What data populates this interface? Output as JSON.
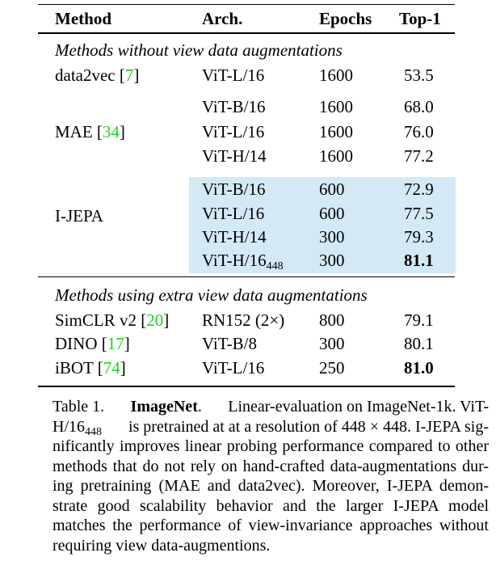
{
  "table": {
    "headers": {
      "method": "Method",
      "arch": "Arch.",
      "epochs": "Epochs",
      "top1": "Top-1"
    },
    "section_without": "Methods without view data augmentations",
    "section_with": "Methods using extra view data augmentations",
    "data2vec": {
      "method": "data2vec",
      "ref": "7",
      "arch": "ViT-L/16",
      "epochs": "1600",
      "top1": "53.5"
    },
    "mae": {
      "method": "MAE",
      "ref": "34",
      "rows": [
        {
          "arch": "ViT-B/16",
          "epochs": "1600",
          "top1": "68.0"
        },
        {
          "arch": "ViT-L/16",
          "epochs": "1600",
          "top1": "76.0"
        },
        {
          "arch": "ViT-H/14",
          "epochs": "1600",
          "top1": "77.2"
        }
      ]
    },
    "ijepa": {
      "method": "I-JEPA",
      "highlight_color": "#d4e9f6",
      "rows": [
        {
          "arch": "ViT-B/16",
          "epochs": "600",
          "top1": "72.9"
        },
        {
          "arch": "ViT-L/16",
          "epochs": "600",
          "top1": "77.5"
        },
        {
          "arch": "ViT-H/14",
          "epochs": "300",
          "top1": "79.3"
        }
      ],
      "last_row": {
        "arch": "ViT-H/16",
        "arch_sub": "448",
        "epochs": "300",
        "top1": "81.1"
      }
    },
    "simclr": {
      "method": "SimCLR v2",
      "ref": "20",
      "arch": "RN152 (2×)",
      "epochs": "800",
      "top1": "79.1"
    },
    "dino": {
      "method": "DINO",
      "ref": "17",
      "arch": "ViT-B/8",
      "epochs": "300",
      "top1": "80.1"
    },
    "ibot": {
      "method": "iBOT",
      "ref": "74",
      "arch": "ViT-L/16",
      "epochs": "250",
      "top1": "81.0"
    },
    "ref_color": "#1fd21f"
  },
  "caption": {
    "prefix": "Table 1.",
    "title": "ImageNet",
    "lines": [
      "Linear-evaluation on ImageNet-1k.  ViT-",
      "is pretrained at at a resolution of 448 × 448. I-JEPA sig-",
      "nificantly improves linear probing performance compared to other",
      "methods that do not rely on hand-crafted data-augmentations dur-",
      "ing pretraining (MAE and data2vec).  Moreover, I-JEPA demon-",
      "strate good scalability behavior and the larger I-JEPA model",
      "matches the performance of view-invariance approaches without",
      "requiring view data-augmentions."
    ],
    "line2_model": "H/16",
    "line2_sub": "448"
  }
}
